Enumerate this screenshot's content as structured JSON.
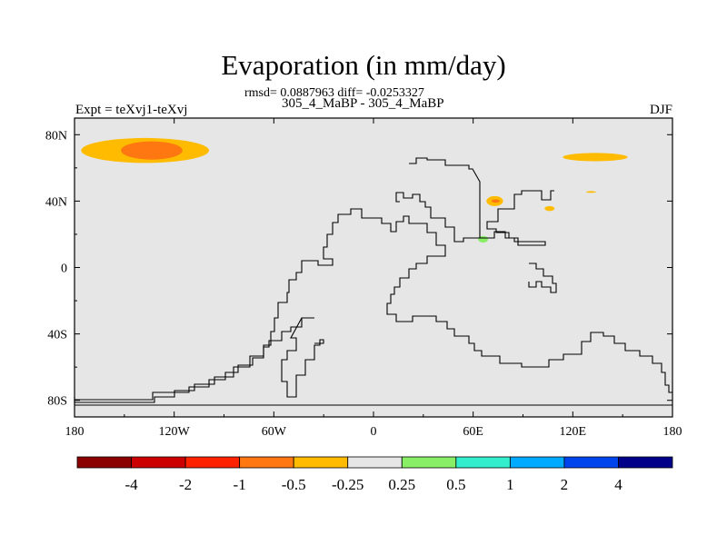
{
  "chart_data": {
    "type": "heatmap",
    "title": "Evaporation (in mm/day)",
    "stats_line": "rmsd= 0.0887963 diff= -0.0253327",
    "subtitle": "305_4_MaBP - 305_4_MaBP",
    "left_label": "Expt = teXvj1-teXvj",
    "right_label": "DJF",
    "xlim": [
      -180,
      180
    ],
    "ylim": [
      -90,
      90
    ],
    "x_ticks": [
      {
        "value": -180,
        "label": "180"
      },
      {
        "value": -120,
        "label": "120W"
      },
      {
        "value": -60,
        "label": "60W"
      },
      {
        "value": 0,
        "label": "0"
      },
      {
        "value": 60,
        "label": "60E"
      },
      {
        "value": 120,
        "label": "120E"
      },
      {
        "value": 180,
        "label": "180"
      }
    ],
    "y_ticks": [
      {
        "value": 80,
        "label": "80N"
      },
      {
        "value": 40,
        "label": "40N"
      },
      {
        "value": 0,
        "label": "0"
      },
      {
        "value": -40,
        "label": "40S"
      },
      {
        "value": -80,
        "label": "80S"
      }
    ],
    "background_color": "#e6e6e6",
    "colorbar": {
      "colors": [
        "#8b0000",
        "#cc0000",
        "#ff2200",
        "#ff7711",
        "#ffbb00",
        "#e6e6e6",
        "#88ee66",
        "#33eecc",
        "#00aaff",
        "#0044ee",
        "#000088"
      ],
      "labels": [
        "-4",
        "-2",
        "-1",
        "-0.5",
        "-0.25",
        "0.25",
        "0.5",
        "1",
        "2",
        "4"
      ]
    },
    "anomalies": [
      {
        "lon_min": -176,
        "lon_max": -99,
        "lat_min": 63,
        "lat_max": 78,
        "value": -0.3,
        "color": "#ffbb00"
      },
      {
        "lon_min": -152,
        "lon_max": -115,
        "lat_min": 65,
        "lat_max": 76,
        "value": -0.7,
        "color": "#ff7711"
      },
      {
        "lon_min": 114,
        "lon_max": 153,
        "lat_min": 64,
        "lat_max": 69,
        "value": -0.3,
        "color": "#ffbb00"
      },
      {
        "lon_min": 68,
        "lon_max": 78,
        "lat_min": 37,
        "lat_max": 43,
        "value": -0.3,
        "color": "#ffbb00"
      },
      {
        "lon_min": 71,
        "lon_max": 76,
        "lat_min": 39,
        "lat_max": 41,
        "value": -0.6,
        "color": "#ff7711"
      },
      {
        "lon_min": 103,
        "lon_max": 109,
        "lat_min": 34,
        "lat_max": 37,
        "value": -0.3,
        "color": "#ffbb00"
      },
      {
        "lon_min": 128,
        "lon_max": 134,
        "lat_min": 45,
        "lat_max": 46,
        "value": -0.3,
        "color": "#ffbb00"
      },
      {
        "lon_min": 63,
        "lon_max": 69,
        "lat_min": 15,
        "lat_max": 19,
        "value": 0.3,
        "color": "#88ee66"
      }
    ]
  }
}
